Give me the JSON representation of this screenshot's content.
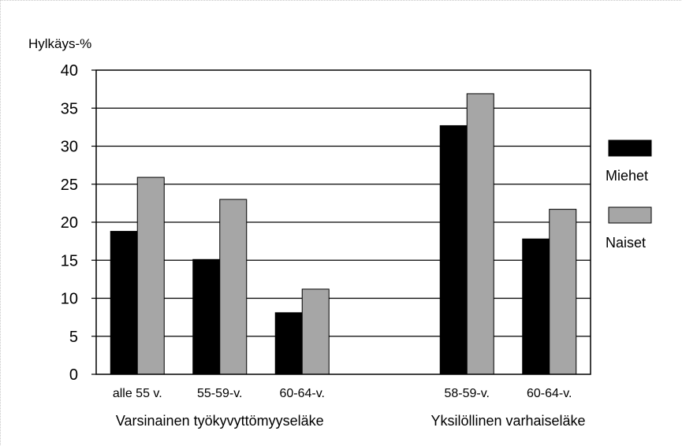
{
  "chart_data": {
    "type": "bar",
    "ylabel": "Hylkäys-%",
    "ylim": [
      0,
      40
    ],
    "ytick_step": 5,
    "yticks": [
      "0",
      "5",
      "10",
      "15",
      "20",
      "25",
      "30",
      "35",
      "40"
    ],
    "grid": true,
    "legend_position": "right",
    "categories": [
      "alle 55 v.",
      "55-59-v.",
      "60-64-v.",
      "58-59-v.",
      "60-64-v."
    ],
    "groups": [
      {
        "label": "Varsinainen työkyvyttömyyseläke",
        "categories": [
          0,
          1,
          2
        ]
      },
      {
        "label": "Yksilöllinen varhaiseläke",
        "categories": [
          3,
          4
        ]
      }
    ],
    "series": [
      {
        "name": "Miehet",
        "color": "#000000",
        "values": [
          18.8,
          15.1,
          8.1,
          32.7,
          17.8
        ]
      },
      {
        "name": "Naiset",
        "color": "#a6a6a6",
        "values": [
          25.9,
          23.0,
          11.2,
          36.9,
          21.7
        ]
      }
    ]
  }
}
